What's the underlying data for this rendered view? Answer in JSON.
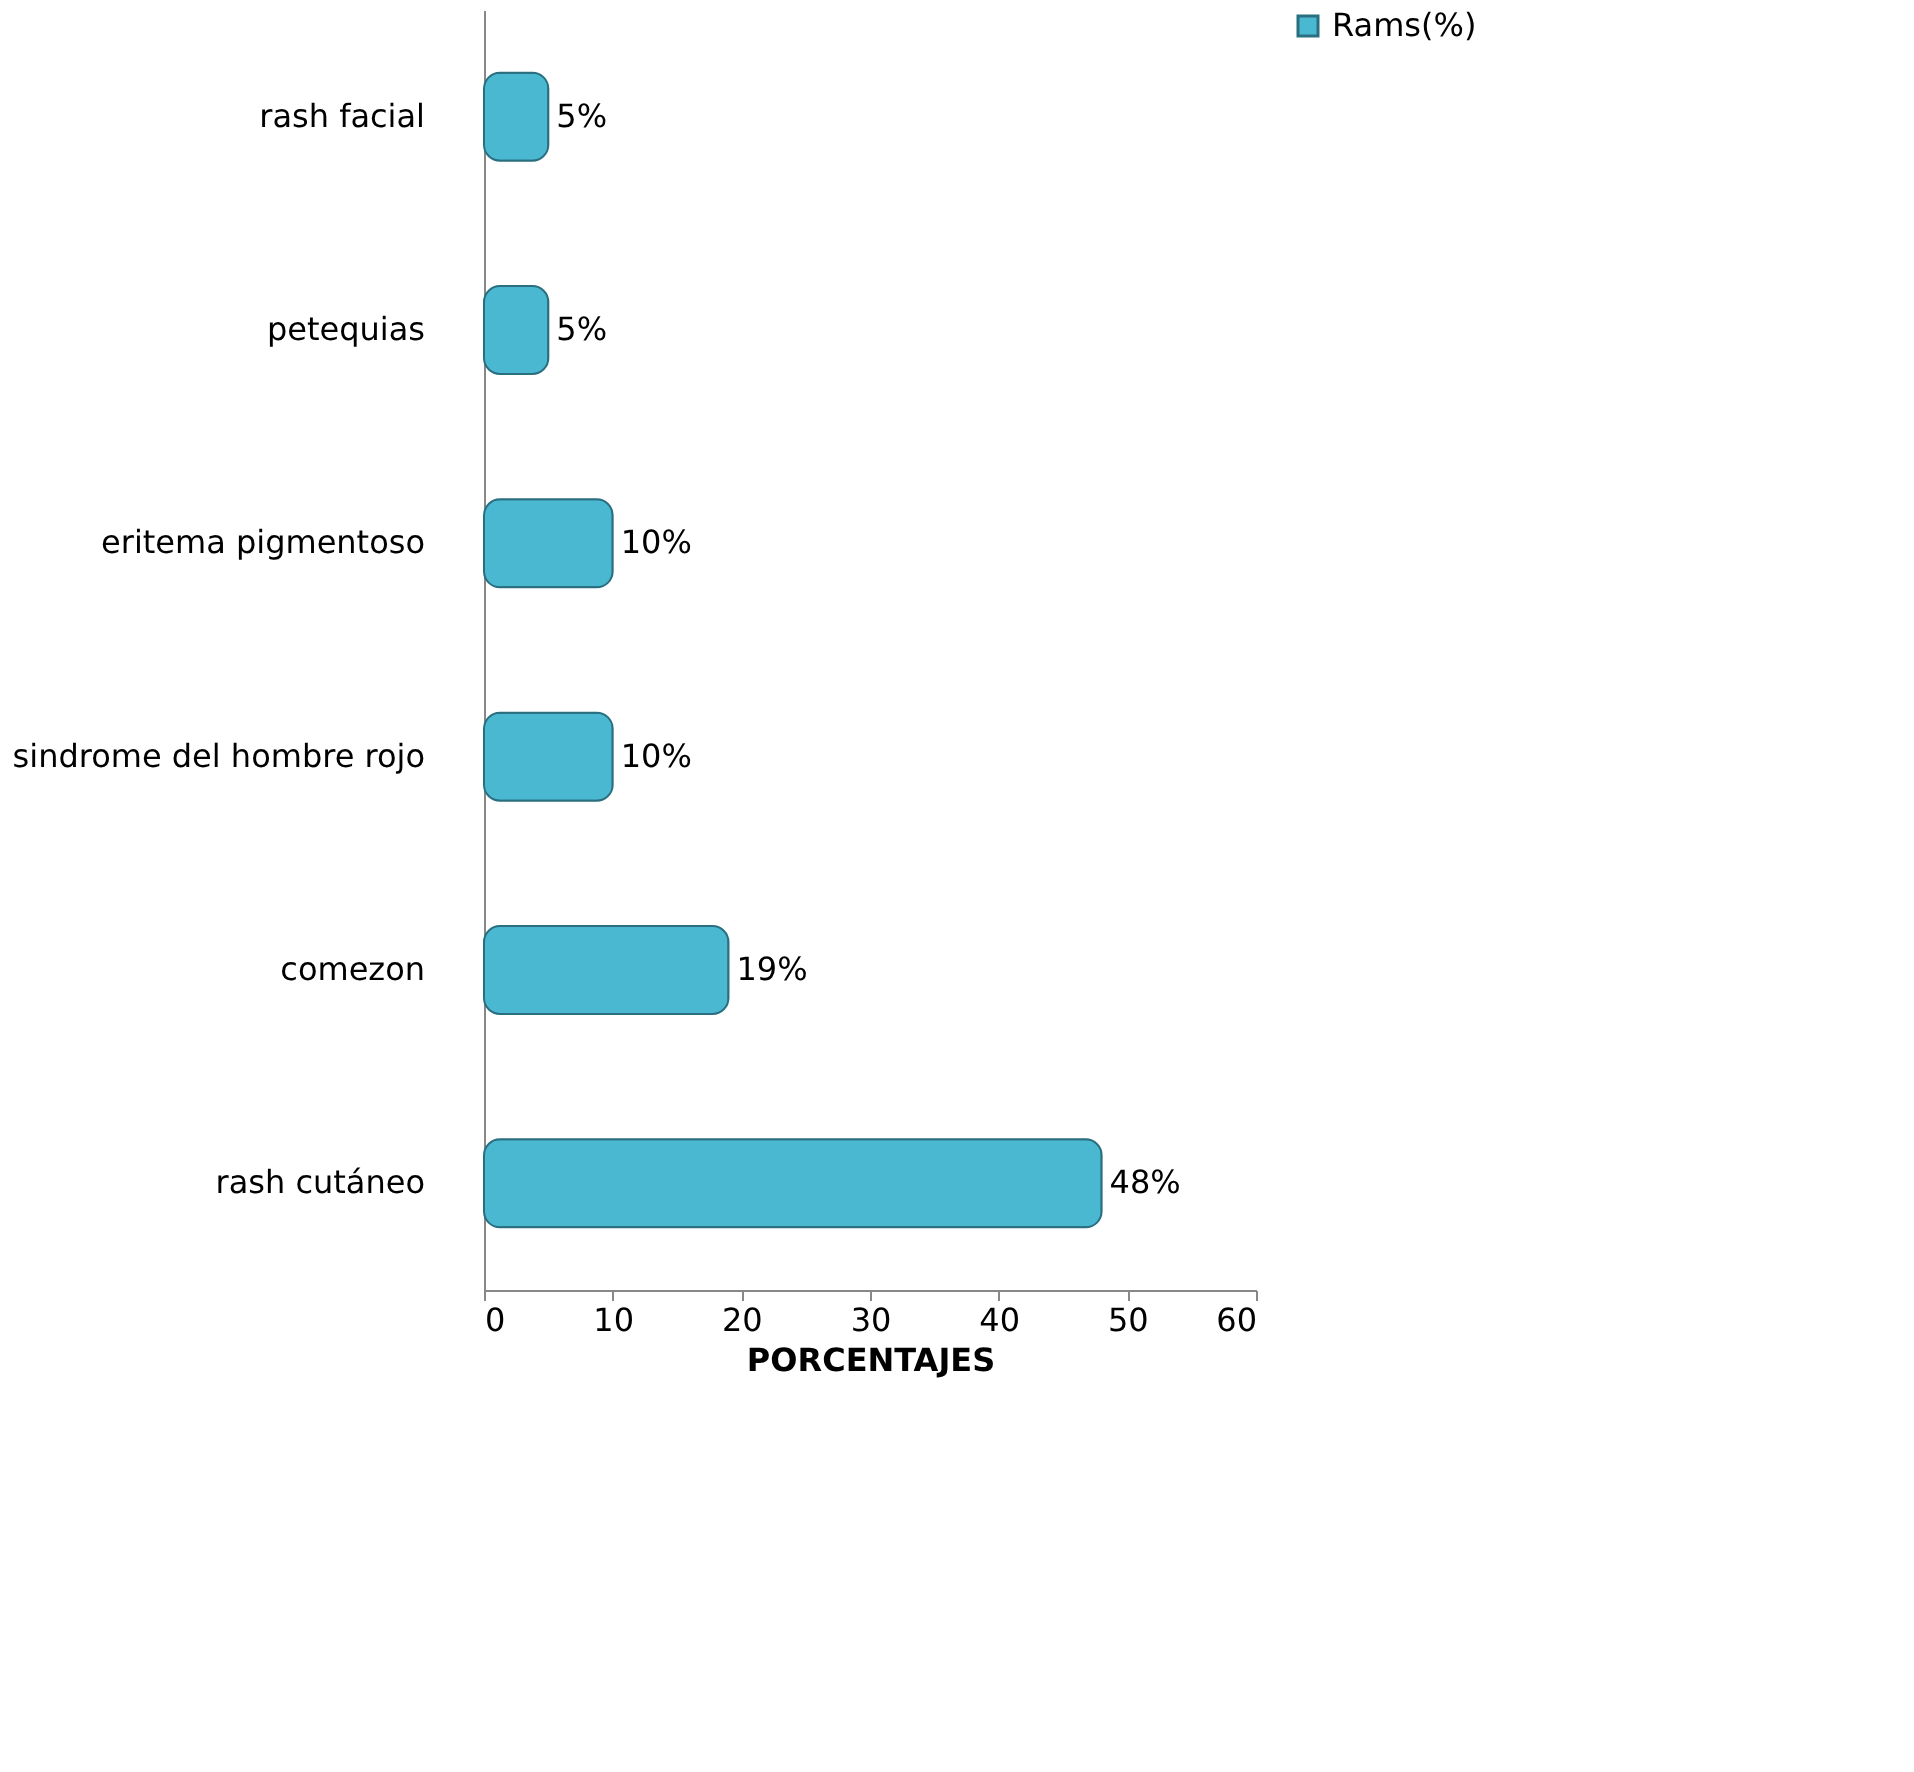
{
  "chart_data": {
    "type": "bar",
    "orientation": "horizontal",
    "xlabel": "PORCENTAJES",
    "categories": [
      "rash facial",
      "petequias",
      "eritema pigmentoso",
      "sindrome del hombre rojo",
      "comezon",
      "rash cutáneo"
    ],
    "series": [
      {
        "name": "Rams(%)",
        "color": "#4bb8d2",
        "values": [
          5,
          5,
          10,
          10,
          19,
          48
        ],
        "value_labels": [
          "5%",
          "5%",
          "10%",
          "10%",
          "19%",
          "48%"
        ]
      }
    ],
    "xlim": [
      0,
      60
    ],
    "xticks": [
      0,
      10,
      20,
      30,
      40,
      50,
      60
    ],
    "grid": false,
    "legend": "right"
  }
}
